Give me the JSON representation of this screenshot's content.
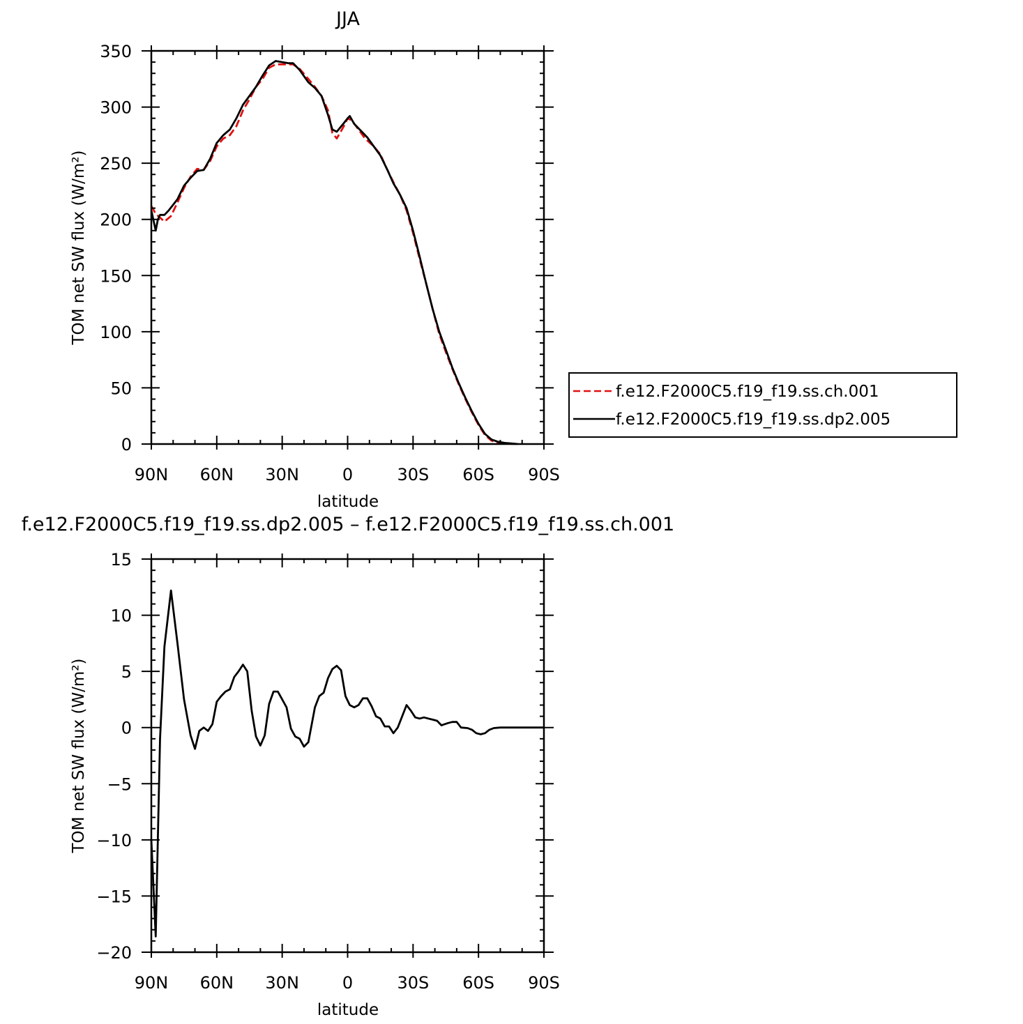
{
  "chart_data": [
    {
      "type": "line",
      "title": "JJA",
      "xlabel": "latitude",
      "ylabel": "TOM net SW flux (W/m²)",
      "xlim": [
        90,
        -90
      ],
      "ylim": [
        0,
        350
      ],
      "x_ticks": [
        90,
        60,
        30,
        0,
        -30,
        -60,
        -90
      ],
      "x_tick_labels": [
        "90N",
        "60N",
        "30N",
        "0",
        "30S",
        "60S",
        "90S"
      ],
      "y_ticks": [
        0,
        50,
        100,
        150,
        200,
        250,
        300,
        350
      ],
      "y_tick_labels": [
        "0",
        "50",
        "100",
        "150",
        "200",
        "250",
        "300",
        "350"
      ],
      "grid": false,
      "legend_position": "right",
      "series": [
        {
          "name": "f.e12.F2000C5.f19_f19.ss.ch.001",
          "color": "#e01010",
          "style": "dashed",
          "points": [
            [
              90,
              212
            ],
            [
              88,
              205
            ],
            [
              84,
              198
            ],
            [
              81,
              203
            ],
            [
              78,
              215
            ],
            [
              75,
              228
            ],
            [
              72,
              238
            ],
            [
              69,
              245
            ],
            [
              66,
              244
            ],
            [
              63,
              252
            ],
            [
              60,
              265
            ],
            [
              57,
              272
            ],
            [
              54,
              275
            ],
            [
              51,
              283
            ],
            [
              48,
              297
            ],
            [
              45,
              307
            ],
            [
              42,
              318
            ],
            [
              39,
              325
            ],
            [
              36,
              335
            ],
            [
              33,
              338
            ],
            [
              30,
              338
            ],
            [
              27,
              338
            ],
            [
              25,
              338
            ],
            [
              22,
              334
            ],
            [
              18,
              325
            ],
            [
              15,
              318
            ],
            [
              12,
              310
            ],
            [
              9,
              297
            ],
            [
              7,
              277
            ],
            [
              5,
              272
            ],
            [
              2,
              282
            ],
            [
              0,
              290
            ],
            [
              -2,
              288
            ],
            [
              -5,
              280
            ],
            [
              -8,
              272
            ],
            [
              -12,
              265
            ],
            [
              -15,
              258
            ],
            [
              -18,
              245
            ],
            [
              -21,
              233
            ],
            [
              -24,
              222
            ],
            [
              -27,
              208
            ],
            [
              -30,
              188
            ],
            [
              -33,
              165
            ],
            [
              -36,
              143
            ],
            [
              -39,
              120
            ],
            [
              -42,
              98
            ],
            [
              -45,
              82
            ],
            [
              -48,
              67
            ],
            [
              -51,
              53
            ],
            [
              -54,
              40
            ],
            [
              -57,
              28
            ],
            [
              -60,
              17
            ],
            [
              -63,
              8
            ],
            [
              -66,
              3
            ],
            [
              -69,
              1
            ],
            [
              -72,
              0.5
            ],
            [
              -75,
              0.2
            ],
            [
              -78,
              0
            ]
          ]
        },
        {
          "name": "f.e12.F2000C5.f19_f19.ss.dp2.005",
          "color": "#000000",
          "style": "solid",
          "points": [
            [
              90,
              208
            ],
            [
              88,
              190
            ],
            [
              87,
              200
            ],
            [
              86,
              204
            ],
            [
              84,
              204
            ],
            [
              82,
              208
            ],
            [
              80,
              213
            ],
            [
              78,
              218
            ],
            [
              75,
              230
            ],
            [
              72,
              237
            ],
            [
              69,
              243
            ],
            [
              66,
              244
            ],
            [
              63,
              254
            ],
            [
              60,
              268
            ],
            [
              57,
              275
            ],
            [
              54,
              280
            ],
            [
              51,
              290
            ],
            [
              48,
              302
            ],
            [
              45,
              310
            ],
            [
              42,
              318
            ],
            [
              39,
              328
            ],
            [
              36,
              337
            ],
            [
              33,
              341
            ],
            [
              30,
              340
            ],
            [
              27,
              339
            ],
            [
              25,
              339
            ],
            [
              22,
              333
            ],
            [
              18,
              322
            ],
            [
              15,
              317
            ],
            [
              12,
              310
            ],
            [
              9,
              293
            ],
            [
              7,
              280
            ],
            [
              5,
              278
            ],
            [
              2,
              285
            ],
            [
              0,
              290
            ],
            [
              -1,
              292
            ],
            [
              -3,
              285
            ],
            [
              -6,
              279
            ],
            [
              -9,
              273
            ],
            [
              -12,
              265
            ],
            [
              -15,
              257
            ],
            [
              -18,
              245
            ],
            [
              -21,
              232
            ],
            [
              -24,
              222
            ],
            [
              -27,
              210
            ],
            [
              -30,
              190
            ],
            [
              -33,
              167
            ],
            [
              -36,
              143
            ],
            [
              -39,
              120
            ],
            [
              -42,
              100
            ],
            [
              -45,
              84
            ],
            [
              -48,
              68
            ],
            [
              -51,
              54
            ],
            [
              -54,
              41
            ],
            [
              -57,
              29
            ],
            [
              -60,
              18
            ],
            [
              -63,
              9
            ],
            [
              -66,
              4
            ],
            [
              -69,
              2
            ],
            [
              -72,
              1
            ],
            [
              -75,
              0.5
            ],
            [
              -78,
              0
            ]
          ]
        }
      ]
    },
    {
      "type": "line",
      "title": "f.e12.F2000C5.f19_f19.ss.dp2.005 – f.e12.F2000C5.f19_f19.ss.ch.001",
      "xlabel": "latitude",
      "ylabel": "TOM net SW flux (W/m²)",
      "xlim": [
        90,
        -90
      ],
      "ylim": [
        -20,
        15
      ],
      "x_ticks": [
        90,
        60,
        30,
        0,
        -30,
        -60,
        -90
      ],
      "x_tick_labels": [
        "90N",
        "60N",
        "30N",
        "0",
        "30S",
        "60S",
        "90S"
      ],
      "y_ticks": [
        -20,
        -15,
        -10,
        -5,
        0,
        5,
        10,
        15
      ],
      "y_tick_labels": [
        "−20",
        "−15",
        "−10",
        "−5",
        "0",
        "5",
        "10",
        "15"
      ],
      "grid": false,
      "series": [
        {
          "color": "#000000",
          "style": "solid",
          "points": [
            [
              90,
              -10
            ],
            [
              88,
              -18.6
            ],
            [
              86,
              -1
            ],
            [
              84,
              7.2
            ],
            [
              81,
              12.2
            ],
            [
              78,
              7.5
            ],
            [
              75,
              2.5
            ],
            [
              72,
              -0.7
            ],
            [
              70,
              -1.9
            ],
            [
              68,
              -0.3
            ],
            [
              66,
              0
            ],
            [
              64,
              -0.3
            ],
            [
              62,
              0.3
            ],
            [
              60,
              2.3
            ],
            [
              58,
              2.8
            ],
            [
              56,
              3.2
            ],
            [
              54,
              3.4
            ],
            [
              52,
              4.5
            ],
            [
              50,
              5
            ],
            [
              48,
              5.6
            ],
            [
              46,
              5
            ],
            [
              44,
              1.5
            ],
            [
              42,
              -0.8
            ],
            [
              40,
              -1.6
            ],
            [
              38,
              -0.7
            ],
            [
              36,
              2.1
            ],
            [
              34,
              3.2
            ],
            [
              32,
              3.2
            ],
            [
              30,
              2.5
            ],
            [
              28,
              1.8
            ],
            [
              26,
              -0.1
            ],
            [
              24,
              -0.8
            ],
            [
              22,
              -1
            ],
            [
              20,
              -1.7
            ],
            [
              18,
              -1.3
            ],
            [
              15,
              1.8
            ],
            [
              13,
              2.8
            ],
            [
              11,
              3.1
            ],
            [
              9,
              4.4
            ],
            [
              7,
              5.2
            ],
            [
              5,
              5.5
            ],
            [
              3,
              5.1
            ],
            [
              1,
              2.8
            ],
            [
              -1,
              2
            ],
            [
              -3,
              1.8
            ],
            [
              -5,
              2
            ],
            [
              -7,
              2.6
            ],
            [
              -9,
              2.6
            ],
            [
              -11,
              1.9
            ],
            [
              -13,
              1
            ],
            [
              -15,
              0.8
            ],
            [
              -17,
              0.1
            ],
            [
              -19,
              0.1
            ],
            [
              -21,
              -0.5
            ],
            [
              -23,
              0
            ],
            [
              -25,
              1
            ],
            [
              -27,
              2
            ],
            [
              -29,
              1.5
            ],
            [
              -31,
              0.9
            ],
            [
              -33,
              0.8
            ],
            [
              -35,
              0.9
            ],
            [
              -37,
              0.8
            ],
            [
              -39,
              0.7
            ],
            [
              -41,
              0.6
            ],
            [
              -43,
              0.2
            ],
            [
              -46,
              0.4
            ],
            [
              -48,
              0.5
            ],
            [
              -50,
              0.5
            ],
            [
              -52,
              0
            ],
            [
              -55,
              -0.05
            ],
            [
              -57,
              -0.2
            ],
            [
              -59,
              -0.5
            ],
            [
              -61,
              -0.6
            ],
            [
              -63,
              -0.5
            ],
            [
              -65,
              -0.2
            ],
            [
              -67,
              -0.05
            ],
            [
              -70,
              0
            ],
            [
              -80,
              0
            ],
            [
              -90,
              0
            ]
          ]
        }
      ]
    }
  ]
}
